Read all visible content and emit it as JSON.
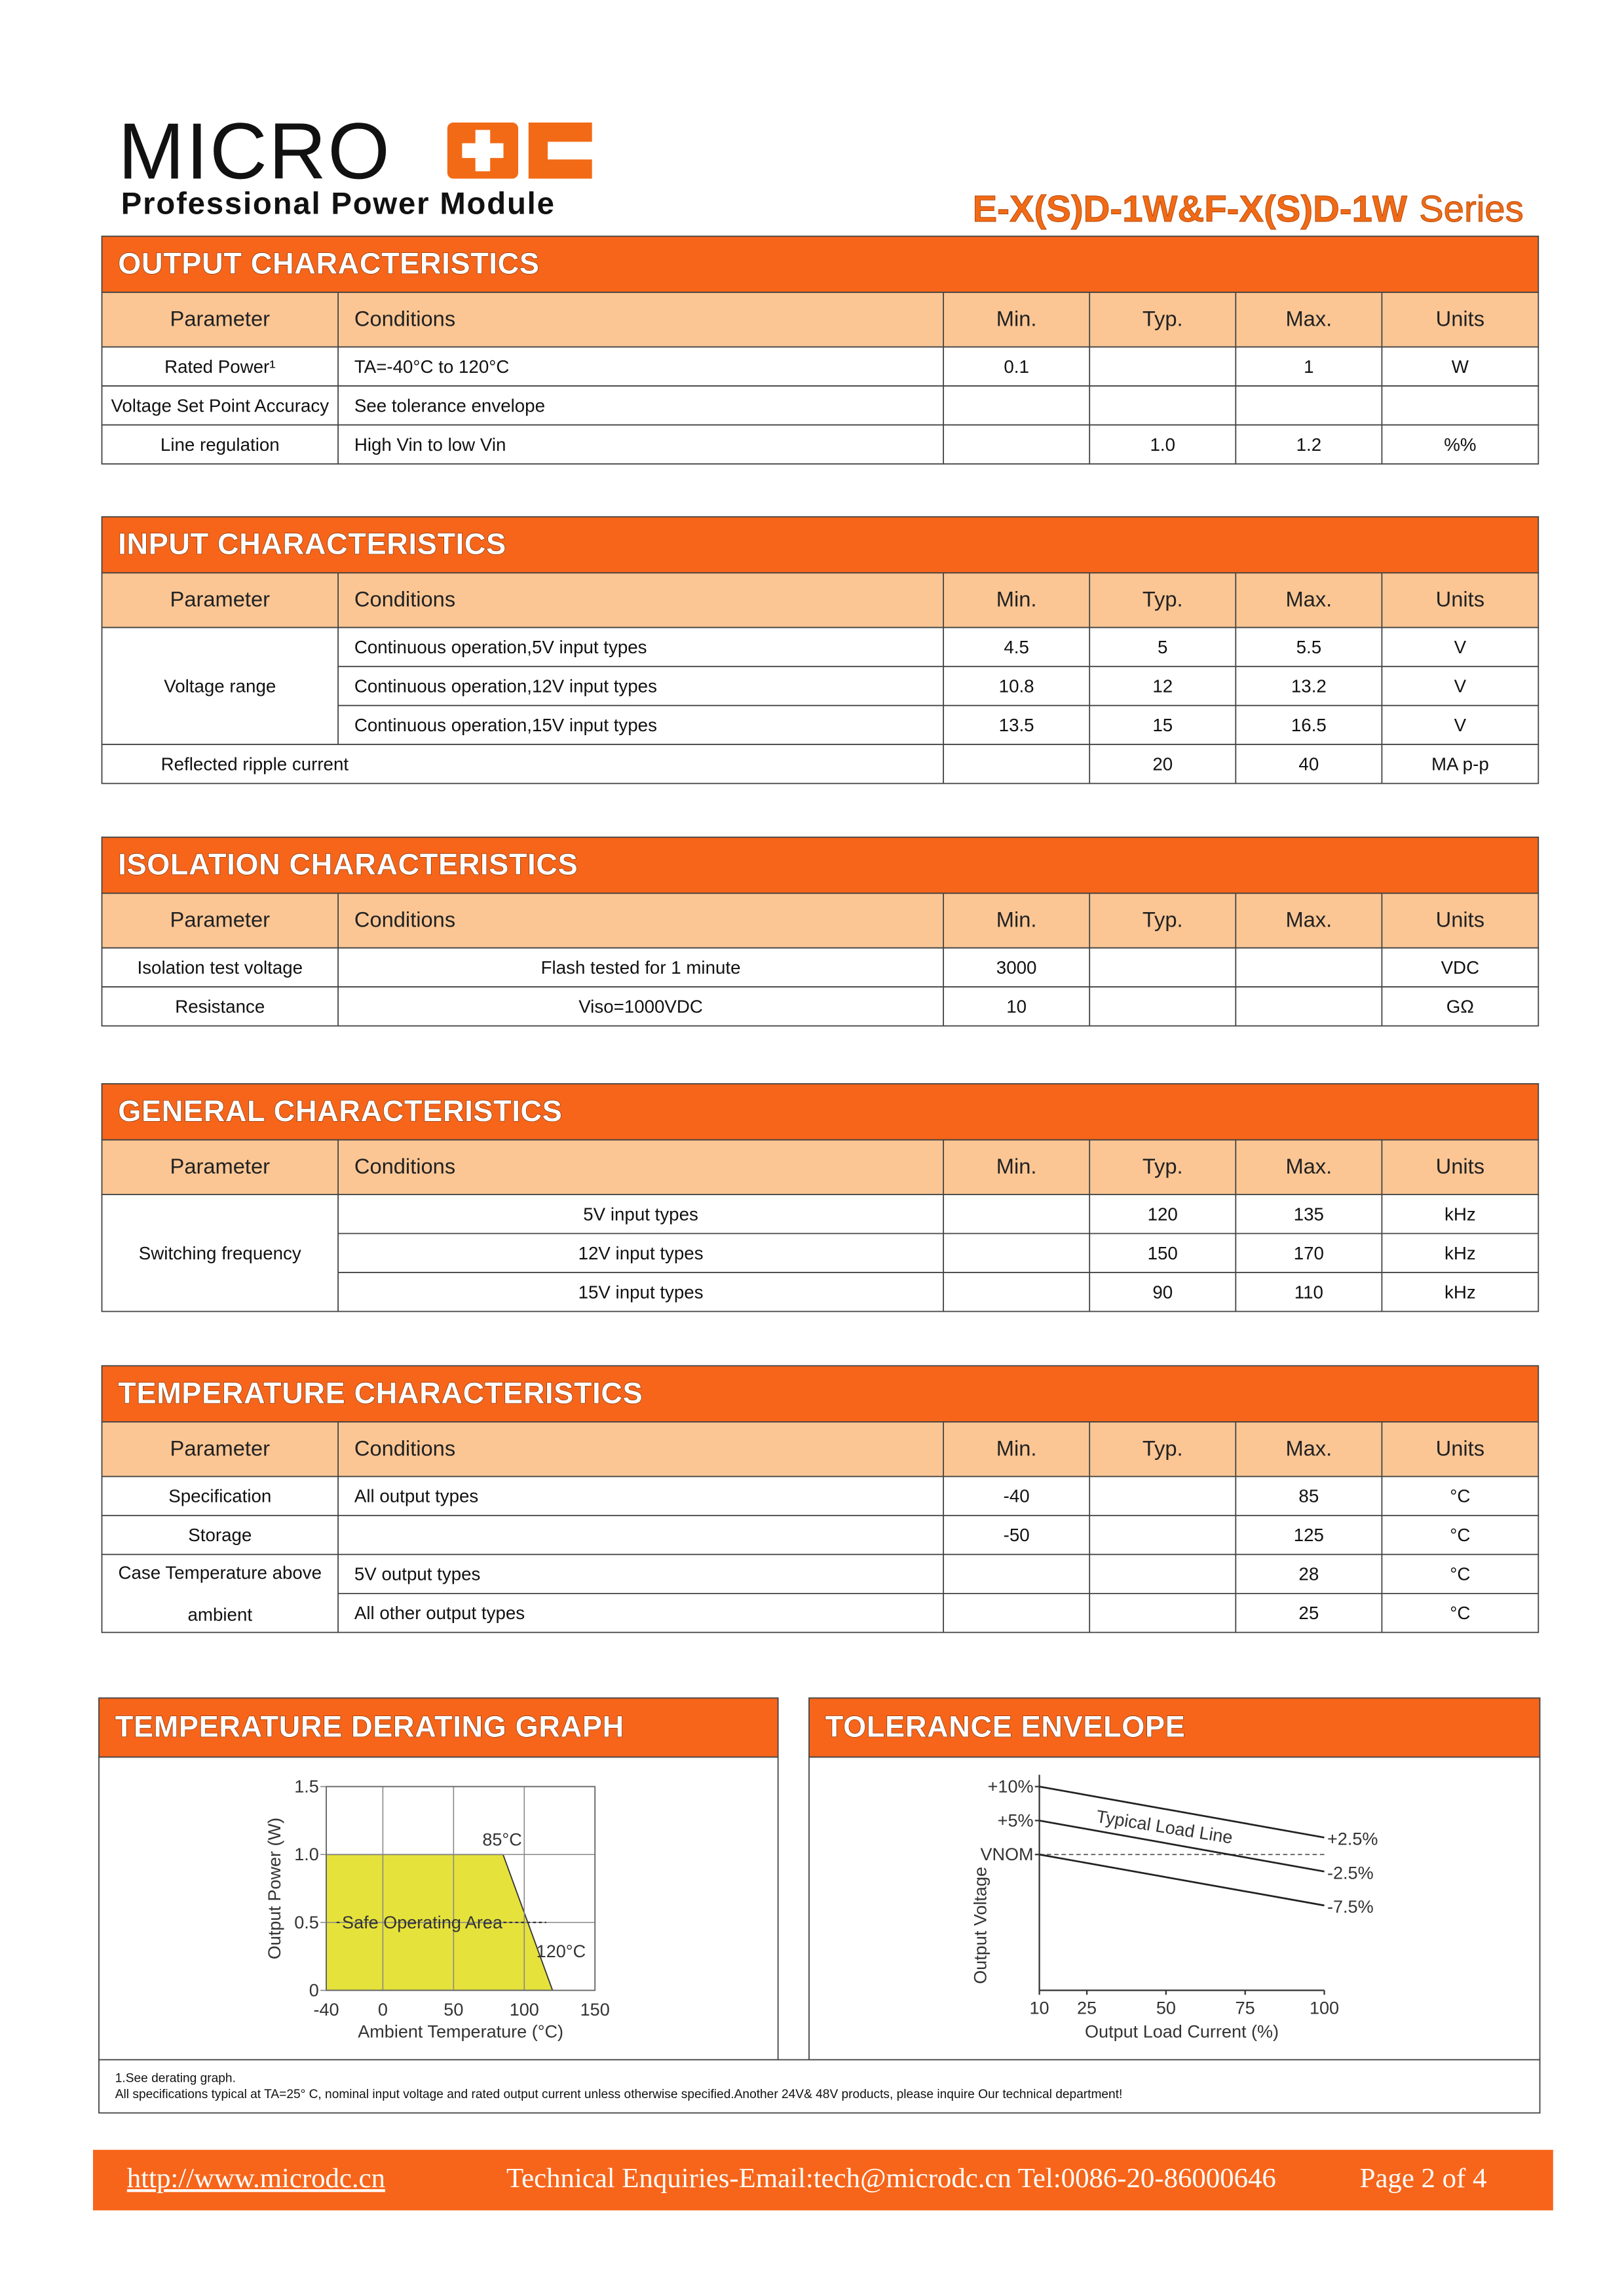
{
  "header": {
    "logo_text": "MICRO",
    "tagline": "Professional Power Module",
    "series_name": "E-X(S)D-1W&F-X(S)D-1W",
    "series_suffix": "Series"
  },
  "sections": [
    {
      "title": "OUTPUT CHARACTERISTICS",
      "columns": [
        "Parameter",
        "Conditions",
        "Min.",
        "Typ.",
        "Max.",
        "Units"
      ],
      "rows": [
        {
          "parameter": [
            "Rated Power¹"
          ],
          "cells": [
            [
              "TA=-40°C  to 120°C",
              "0.1",
              null,
              "1",
              "W"
            ]
          ]
        },
        {
          "parameter": [
            "Voltage Set Point Accuracy"
          ],
          "cells": [
            [
              "See tolerance envelope",
              null,
              null,
              null,
              null
            ]
          ]
        },
        {
          "parameter": [
            "Line regulation"
          ],
          "cells": [
            [
              "High Vin to low Vin",
              null,
              "1.0",
              "1.2",
              "%%"
            ]
          ]
        }
      ]
    },
    {
      "title": "INPUT CHARACTERISTICS",
      "columns": [
        "Parameter",
        "Conditions",
        "Min.",
        "Typ.",
        "Max.",
        "Units"
      ],
      "rows": [
        {
          "parameter": [
            "Voltage range"
          ],
          "cells": [
            [
              "Continuous operation,5V input types",
              "4.5",
              "5",
              "5.5",
              "V"
            ],
            [
              "Continuous operation,12V input types",
              "10.8",
              "12",
              "13.2",
              "V"
            ],
            [
              "Continuous operation,15V input types",
              "13.5",
              "15",
              "16.5",
              "V"
            ]
          ]
        },
        {
          "parameter": [
            "Reflected ripple current"
          ],
          "cells": [
            [
              null,
              "20",
              "40",
              "MA p-p"
            ]
          ]
        }
      ]
    },
    {
      "title": "ISOLATION CHARACTERISTICS",
      "columns": [
        "Parameter",
        "Conditions",
        "Min.",
        "Typ.",
        "Max.",
        "Units"
      ],
      "rows": [
        {
          "parameter": [
            "Isolation test voltage"
          ],
          "cells": [
            [
              "Flash tested for 1 minute",
              "3000",
              null,
              null,
              "VDC"
            ]
          ]
        },
        {
          "parameter": [
            "Resistance"
          ],
          "cells": [
            [
              "Viso=1000VDC",
              "10",
              null,
              null,
              "GΩ"
            ]
          ]
        }
      ]
    },
    {
      "title": "GENERAL CHARACTERISTICS",
      "columns": [
        "Parameter",
        "Conditions",
        "Min.",
        "Typ.",
        "Max.",
        "Units"
      ],
      "rows": [
        {
          "parameter": [
            "Switching frequency"
          ],
          "cells": [
            [
              "5V input types",
              null,
              "120",
              "135",
              "kHz"
            ],
            [
              "12V input types",
              null,
              "150",
              "170",
              "kHz"
            ],
            [
              "15V input types",
              null,
              "90",
              "110",
              "kHz"
            ]
          ]
        }
      ]
    },
    {
      "title": "TEMPERATURE CHARACTERISTICS",
      "columns": [
        "Parameter",
        "Conditions",
        "Min.",
        "Typ.",
        "Max.",
        "Units"
      ],
      "rows": [
        {
          "parameter": [
            "Specification"
          ],
          "cells": [
            [
              "All output types",
              "-40",
              null,
              "85",
              "°C"
            ]
          ]
        },
        {
          "parameter": [
            "Storage"
          ],
          "cells": [
            [
              null,
              "-50",
              null,
              "125",
              "°C"
            ]
          ]
        },
        {
          "parameter": [
            "Case Temperature above",
            "ambient"
          ],
          "cells": [
            [
              "5V output types",
              null,
              null,
              "28",
              "°C"
            ],
            [
              "All other output types",
              null,
              null,
              "25",
              "°C"
            ]
          ]
        }
      ]
    }
  ],
  "derating_graph": {
    "title": "TEMPERATURE DERATING GRAPH",
    "type": "area",
    "x_label": "Ambient Temperature (°C)",
    "y_label": "Output Power (W)",
    "x": [
      -40,
      -40,
      85,
      120
    ],
    "values": [
      0,
      1,
      1,
      0
    ],
    "color": "#e6e23c",
    "area_label": "Safe Operating Area",
    "annotations": [
      {
        "text": "85°C",
        "x": 85,
        "y": 1
      },
      {
        "text": "120°C",
        "x": 120,
        "y": 0.2
      }
    ],
    "xlim": [
      -40,
      150
    ],
    "ylim": [
      0,
      1.5
    ],
    "xticks": [
      -40,
      0,
      50,
      100,
      150
    ],
    "yticks": [
      0,
      {
        "value": 0.5,
        "label": "0.5"
      },
      {
        "value": 1,
        "label": "1.0"
      },
      {
        "value": 1.5,
        "label": "1.5"
      }
    ],
    "grid": true
  },
  "tolerance_envelope": {
    "title": "TOLERANCE ENVELOPE",
    "type": "line",
    "x_label": "Output Load Current (%)",
    "y_label": "Output Voltage",
    "line_label": "Typical Load Line",
    "x": [
      10,
      100
    ],
    "series": [
      {
        "color": "#222",
        "values": [
          10,
          2.5
        ],
        "value_labels": [
          null,
          "+2.5%"
        ]
      },
      {
        "color": "#222",
        "values": [
          5,
          -2.5
        ],
        "value_labels": [
          null,
          "-2.5%"
        ]
      },
      {
        "color": "#222",
        "values": [
          0,
          -7.5
        ],
        "value_labels": [
          null,
          "-7.5%"
        ]
      }
    ],
    "xlim": [
      10,
      100
    ],
    "ylim": [
      -20,
      10
    ],
    "xticks": [
      10,
      25,
      50,
      75,
      100
    ],
    "yticks": [
      {
        "value": 10,
        "label": "+10%"
      },
      {
        "value": 5,
        "label": "+5%"
      },
      {
        "value": 0,
        "label": "VNOM"
      }
    ]
  },
  "notes": [
    "1.See derating graph.",
    "All specifications typical at TA=25° C, nominal input voltage and rated output current unless otherwise specified.Another 24V& 48V products, please inquire Our technical department!"
  ],
  "footer": {
    "url": "http://www.microdc.cn",
    "contact": "Technical Enquiries-Email:tech@microdc.cn Tel:0086-20-86000646",
    "page": "Page 2 of 4"
  }
}
